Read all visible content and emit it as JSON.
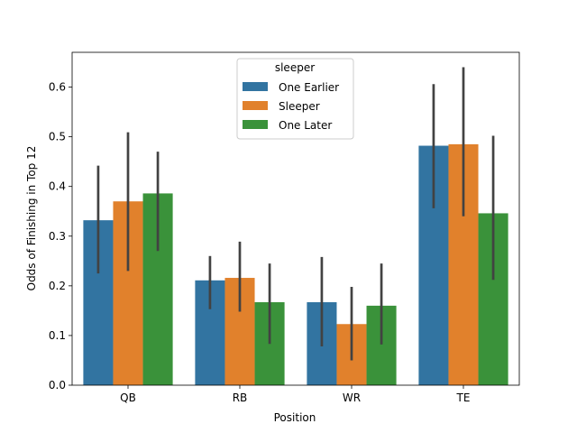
{
  "chart_data": {
    "type": "bar",
    "categories": [
      "QB",
      "RB",
      "WR",
      "TE"
    ],
    "xlabel": "Position",
    "ylabel": "Odds of Finishing in Top 12",
    "ylim": [
      0,
      0.67
    ],
    "yticks": [
      0.0,
      0.1,
      0.2,
      0.3,
      0.4,
      0.5,
      0.6
    ],
    "grid": false,
    "legend": {
      "title": "sleeper",
      "placement": "top-center"
    },
    "series": [
      {
        "name": "One Earlier",
        "color": "#3274a1",
        "values": [
          0.332,
          0.211,
          0.167,
          0.482
        ],
        "ci": [
          [
            0.225,
            0.442
          ],
          [
            0.153,
            0.26
          ],
          [
            0.078,
            0.258
          ],
          [
            0.356,
            0.606
          ]
        ]
      },
      {
        "name": "Sleeper",
        "color": "#e1812c",
        "values": [
          0.37,
          0.216,
          0.123,
          0.485
        ],
        "ci": [
          [
            0.23,
            0.509
          ],
          [
            0.148,
            0.289
          ],
          [
            0.05,
            0.198
          ],
          [
            0.34,
            0.64
          ]
        ]
      },
      {
        "name": "One Later",
        "color": "#3a923a",
        "values": [
          0.386,
          0.167,
          0.16,
          0.346
        ],
        "ci": [
          [
            0.27,
            0.47
          ],
          [
            0.083,
            0.245
          ],
          [
            0.082,
            0.245
          ],
          [
            0.212,
            0.502
          ]
        ]
      }
    ]
  }
}
